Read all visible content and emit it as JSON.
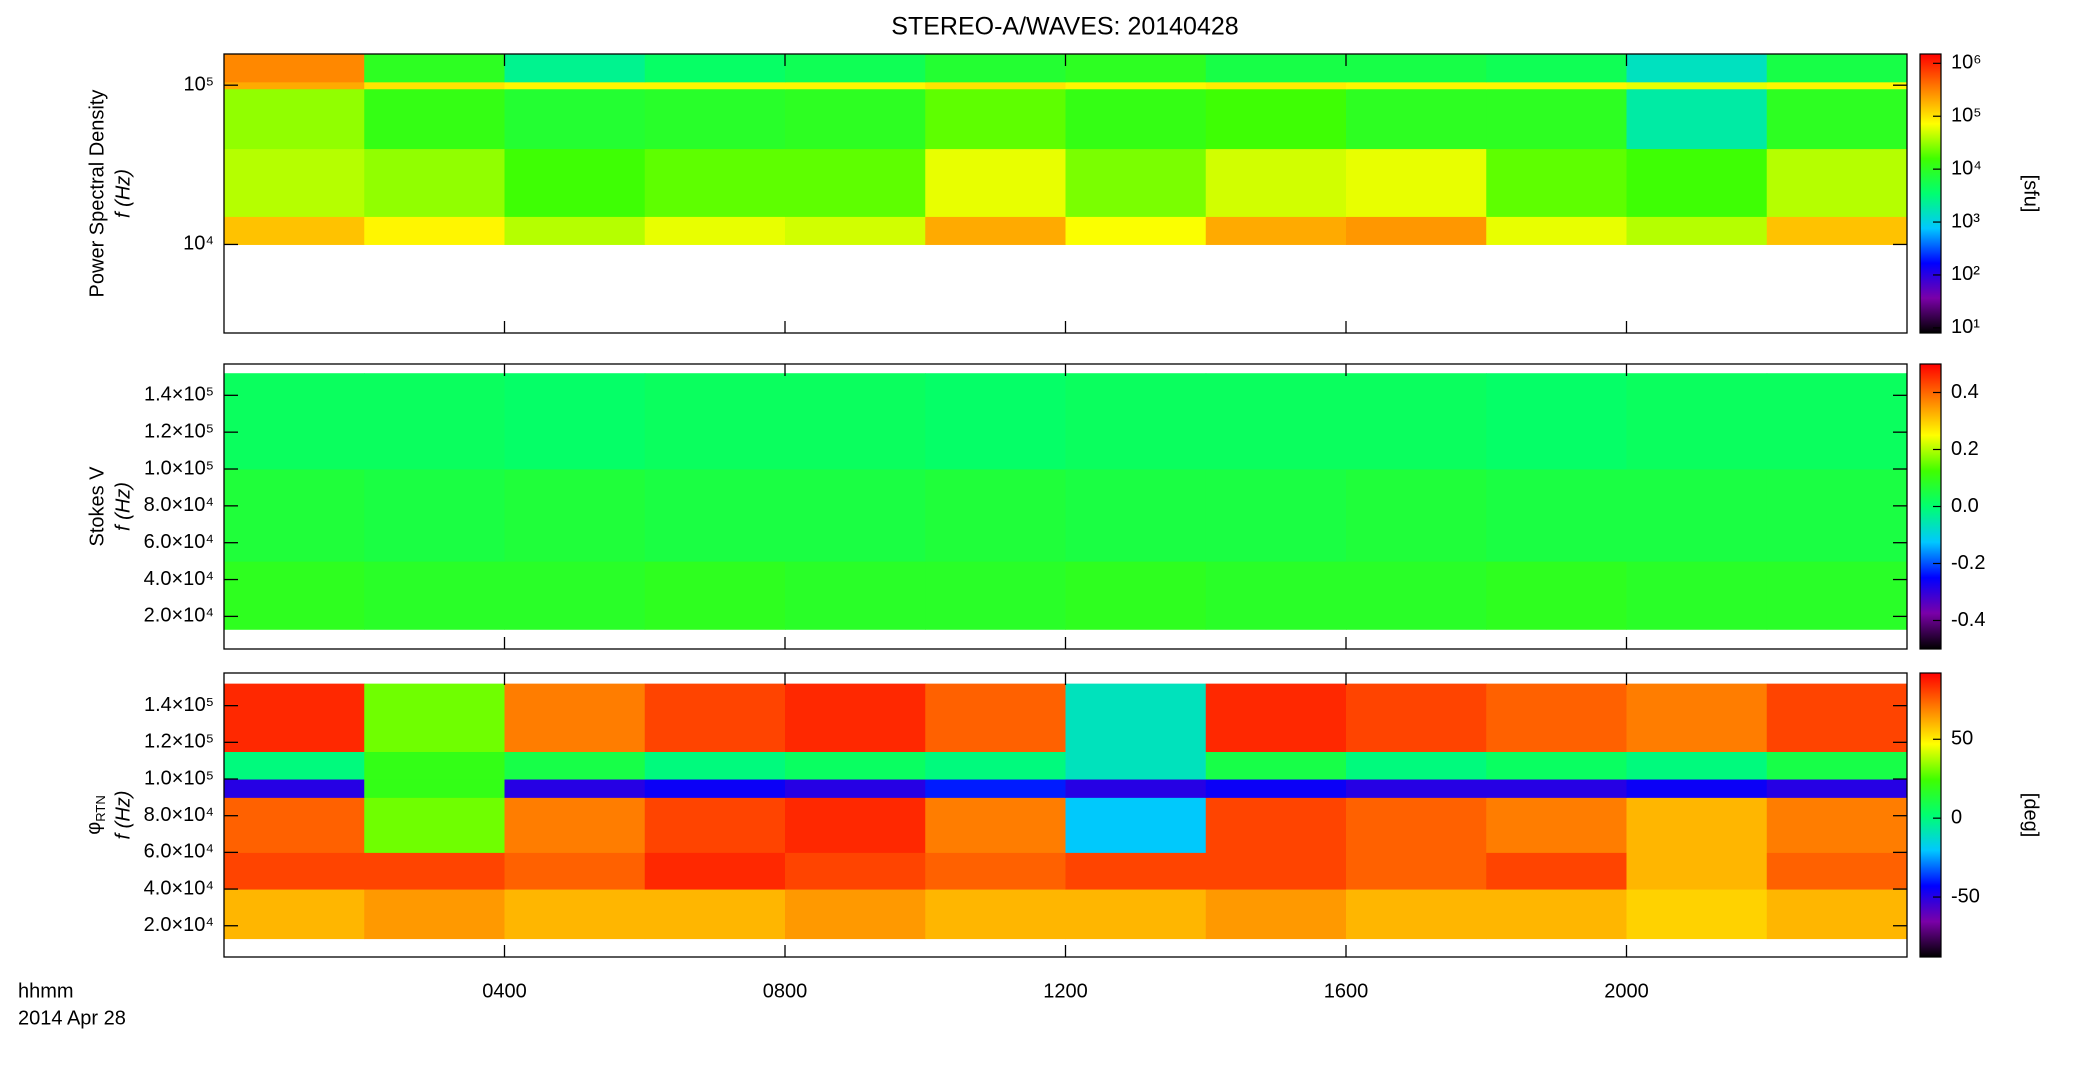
{
  "title": "STEREO-A/WAVES: 20140428",
  "xlim": [
    0,
    24
  ],
  "xticks": [
    {
      "value": 4,
      "label": "0400"
    },
    {
      "value": 8,
      "label": "0800"
    },
    {
      "value": 12,
      "label": "1200"
    },
    {
      "value": 16,
      "label": "1600"
    },
    {
      "value": 20,
      "label": "2000"
    }
  ],
  "x_label": [
    "hhmm",
    "2014 Apr 28"
  ],
  "colormap": [
    "#000000",
    "#7a00a8",
    "#0000ff",
    "#00c8ff",
    "#00ff70",
    "#40ff00",
    "#ffff00",
    "#ff8000",
    "#ff0000"
  ],
  "chart_data": [
    {
      "type": "heatmap",
      "y_title": "Power Spectral Density",
      "y_label": "f (Hz)",
      "ylog": true,
      "ylim": [
        2780,
        157000
      ],
      "yticks": [
        {
          "value": 10000,
          "label": "10⁴"
        },
        {
          "value": 100000,
          "label": "10⁵"
        }
      ],
      "x_edges": [
        0,
        2,
        4,
        6,
        8,
        10,
        12,
        14,
        16,
        18,
        20,
        22,
        24
      ],
      "y_edges": [
        10000,
        15000,
        40000,
        95000,
        105000,
        157000
      ],
      "z": [
        [
          150000,
          80000,
          40000,
          60000,
          50000,
          200000,
          70000,
          200000,
          250000,
          60000,
          40000,
          150000
        ],
        [
          40000,
          30000,
          15000,
          20000,
          20000,
          60000,
          25000,
          50000,
          60000,
          20000,
          15000,
          40000
        ],
        [
          30000,
          12000,
          8000,
          9000,
          10000,
          20000,
          12000,
          15000,
          10000,
          10000,
          2000,
          10000
        ],
        [
          200000,
          100000,
          80000,
          80000,
          80000,
          100000,
          80000,
          90000,
          80000,
          80000,
          60000,
          80000
        ],
        [
          300000,
          10000,
          2500,
          4000,
          5000,
          8000,
          10000,
          6000,
          6000,
          5000,
          1500,
          6000
        ]
      ],
      "colorbar": {
        "log": true,
        "lim": [
          8,
          1500000
        ],
        "label": "[sfu]",
        "ticks": [
          {
            "value": 10,
            "label": "10¹"
          },
          {
            "value": 100,
            "label": "10²"
          },
          {
            "value": 1000,
            "label": "10³"
          },
          {
            "value": 10000,
            "label": "10⁴"
          },
          {
            "value": 100000,
            "label": "10⁵"
          },
          {
            "value": 1000000,
            "label": "10⁶"
          }
        ]
      }
    },
    {
      "type": "heatmap",
      "y_title": "Stokes V",
      "y_label": "f (Hz)",
      "ylog": false,
      "ylim": [
        2300,
        157000
      ],
      "yticks": [
        {
          "value": 20000,
          "label": "2.0×10⁴"
        },
        {
          "value": 40000,
          "label": "4.0×10⁴"
        },
        {
          "value": 60000,
          "label": "6.0×10⁴"
        },
        {
          "value": 80000,
          "label": "8.0×10⁴"
        },
        {
          "value": 100000,
          "label": "1.0×10⁵"
        },
        {
          "value": 120000,
          "label": "1.2×10⁵"
        },
        {
          "value": 140000,
          "label": "1.4×10⁵"
        }
      ],
      "x_edges": [
        0,
        2,
        4,
        6,
        8,
        10,
        12,
        14,
        16,
        18,
        20,
        22,
        24
      ],
      "y_edges": [
        13000,
        50000,
        100000,
        152000
      ],
      "z": [
        [
          0.09,
          0.08,
          0.08,
          0.09,
          0.08,
          0.08,
          0.09,
          0.08,
          0.08,
          0.09,
          0.08,
          0.08
        ],
        [
          0.06,
          0.05,
          0.06,
          0.05,
          0.05,
          0.06,
          0.05,
          0.05,
          0.06,
          0.05,
          0.05,
          0.05
        ],
        [
          0.02,
          0.02,
          0.01,
          0.02,
          0.02,
          0.01,
          0.02,
          0.02,
          0.02,
          0.01,
          0.02,
          0.02
        ]
      ],
      "colorbar": {
        "log": false,
        "lim": [
          -0.5,
          0.5
        ],
        "ticks": [
          -0.4,
          -0.2,
          {
            "value": 0,
            "label": "0.0"
          },
          0.2,
          0.4
        ]
      }
    },
    {
      "type": "heatmap",
      "y_symbol": "φ",
      "y_symbol_sub": "RTN",
      "y_label": "f (Hz)",
      "ylog": false,
      "ylim": [
        2960,
        157800
      ],
      "yticks": [
        {
          "value": 20000,
          "label": "2.0×10⁴"
        },
        {
          "value": 40000,
          "label": "4.0×10⁴"
        },
        {
          "value": 60000,
          "label": "6.0×10⁴"
        },
        {
          "value": 80000,
          "label": "8.0×10⁴"
        },
        {
          "value": 100000,
          "label": "1.0×10⁵"
        },
        {
          "value": 120000,
          "label": "1.2×10⁵"
        },
        {
          "value": 140000,
          "label": "1.4×10⁵"
        }
      ],
      "x_edges": [
        0,
        2,
        4,
        6,
        8,
        10,
        12,
        14,
        16,
        18,
        20,
        22,
        24
      ],
      "y_edges": [
        13000,
        40000,
        60000,
        90000,
        100000,
        115000,
        152000
      ],
      "z": [
        [
          60,
          65,
          60,
          60,
          65,
          60,
          60,
          65,
          60,
          60,
          55,
          60
        ],
        [
          80,
          80,
          75,
          85,
          80,
          75,
          80,
          80,
          75,
          80,
          60,
          75
        ],
        [
          75,
          30,
          70,
          80,
          85,
          70,
          -20,
          80,
          75,
          70,
          60,
          70
        ],
        [
          -50,
          20,
          -50,
          -45,
          -50,
          -40,
          -50,
          -45,
          -50,
          -50,
          -45,
          -50
        ],
        [
          0,
          20,
          10,
          0,
          5,
          0,
          -10,
          10,
          0,
          5,
          0,
          10
        ],
        [
          85,
          30,
          70,
          80,
          85,
          75,
          -10,
          85,
          80,
          75,
          70,
          80
        ]
      ],
      "colorbar": {
        "log": false,
        "lim": [
          -88,
          92
        ],
        "label": "[deg]",
        "ticks": [
          -50,
          0,
          50
        ]
      }
    }
  ]
}
